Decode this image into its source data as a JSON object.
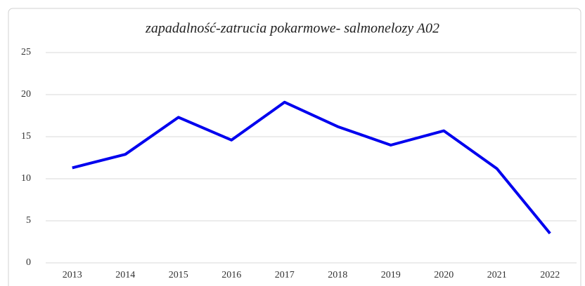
{
  "chart_data": {
    "type": "line",
    "title": "zapadalność-zatrucia pokarmowe- salmonelozy A02",
    "categories": [
      "2013",
      "2014",
      "2015",
      "2016",
      "2017",
      "2018",
      "2019",
      "2020",
      "2021",
      "2022"
    ],
    "values": [
      11.3,
      12.9,
      17.3,
      14.6,
      19.1,
      16.2,
      14.0,
      15.7,
      11.2,
      3.5
    ],
    "color": "#0000ee",
    "ylim": [
      0,
      25
    ],
    "yticks": [
      0,
      5,
      10,
      15,
      20,
      25
    ],
    "grid": true
  }
}
